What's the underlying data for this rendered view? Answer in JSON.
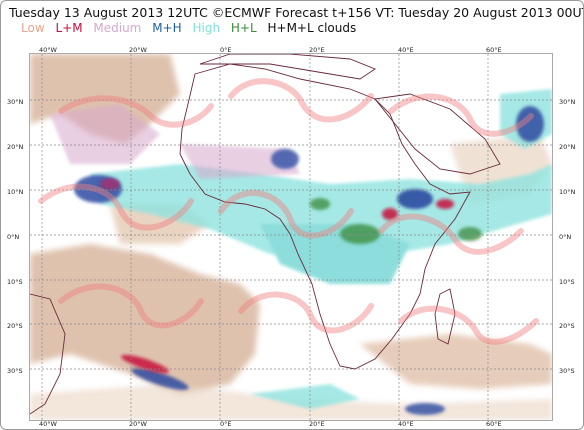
{
  "header": {
    "title": "Tuesday 13 August 2013 12UTC ©ECMWF Forecast t+156 VT: Tuesday 20 August 2013 00UTC"
  },
  "legend": {
    "items": [
      {
        "label": "Low",
        "color": "#e8a58c"
      },
      {
        "label": "L+M",
        "color": "#c8103a"
      },
      {
        "label": "Medium",
        "color": "#d8a8cc"
      },
      {
        "label": "M+H",
        "color": "#2060a8"
      },
      {
        "label": "High",
        "color": "#7fe0dc"
      },
      {
        "label": "H+L",
        "color": "#3a8a3a"
      },
      {
        "label": "H+M+L clouds",
        "color": "#111111"
      }
    ]
  },
  "axes": {
    "lon_labels": [
      "40°W",
      "20°W",
      "0°E",
      "20°E",
      "40°E",
      "60°E"
    ],
    "lat_labels": [
      "30°N",
      "20°N",
      "10°N",
      "0°N",
      "10°S",
      "20°S",
      "30°S"
    ]
  },
  "colors": {
    "grid": "#8a8a8a",
    "coast": "#6b2a3a",
    "land_low": "#d9b8a0"
  }
}
